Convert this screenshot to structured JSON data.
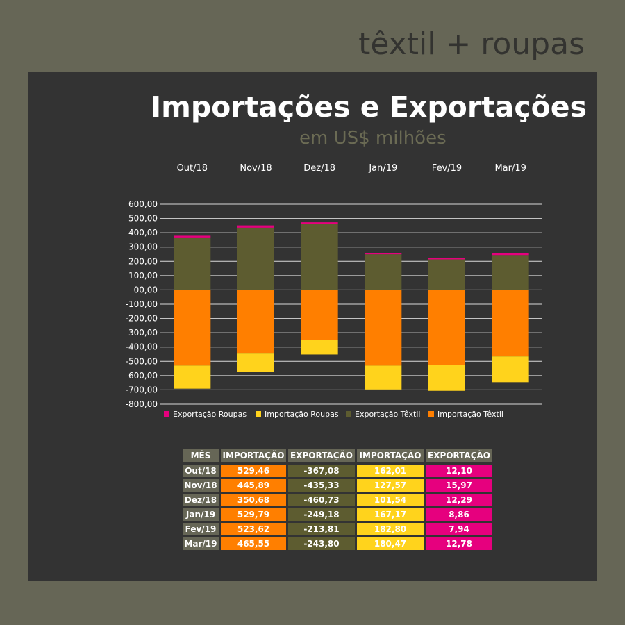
{
  "brand": "têxtil + roupas",
  "colors": {
    "exportacao_roupas": "#e6007e",
    "importacao_roupas": "#ffd31c",
    "exportacao_textil": "#5d5c30",
    "importacao_textil": "#ff7f00"
  },
  "chart_data": {
    "type": "bar",
    "stacked": true,
    "title": "Importações e Exportações",
    "subtitle": "em US$ milhões",
    "categories": [
      "Out/18",
      "Nov/18",
      "Dez/18",
      "Jan/19",
      "Fev/19",
      "Mar/19"
    ],
    "category_labels_position": "top",
    "ylim": [
      -800,
      600
    ],
    "yticks": [
      "600,00",
      "500,00",
      "400,00",
      "300,00",
      "200,00",
      "100,00",
      "00,00",
      "-100,00",
      "-200,00",
      "-300,00",
      "-400,00",
      "-500,00",
      "-600,00",
      "-700,00",
      "-800,00"
    ],
    "grid": true,
    "legend_position": "bottom",
    "series": [
      {
        "name": "Exportação Roupas",
        "values": [
          12.1,
          15.97,
          12.29,
          8.86,
          7.94,
          12.78
        ]
      },
      {
        "name": "Importação Roupas",
        "values": [
          -162.01,
          -127.57,
          -101.54,
          -167.17,
          -182.8,
          -180.47
        ]
      },
      {
        "name": "Exportação Têxtil",
        "values": [
          367.08,
          435.33,
          460.73,
          249.18,
          213.81,
          243.8
        ]
      },
      {
        "name": "Importação Têxtil",
        "values": [
          -529.46,
          -445.89,
          -350.68,
          -529.79,
          -523.62,
          -465.55
        ]
      }
    ]
  },
  "table": {
    "headers": [
      "MÊS",
      "IMPORTAÇÃO",
      "EXPORTAÇÃO",
      "IMPORTAÇÃO",
      "EXPORTAÇÃO"
    ],
    "rows": [
      [
        "Out/18",
        "529,46",
        "-367,08",
        "162,01",
        "12,10"
      ],
      [
        "Nov/18",
        "445,89",
        "-435,33",
        "127,57",
        "15,97"
      ],
      [
        "Dez/18",
        "350,68",
        "-460,73",
        "101,54",
        "12,29"
      ],
      [
        "Jan/19",
        "529,79",
        "-249,18",
        "167,17",
        "8,86"
      ],
      [
        "Fev/19",
        "523,62",
        "-213,81",
        "182,80",
        "7,94"
      ],
      [
        "Mar/19",
        "465,55",
        "-243,80",
        "180,47",
        "12,78"
      ]
    ]
  }
}
